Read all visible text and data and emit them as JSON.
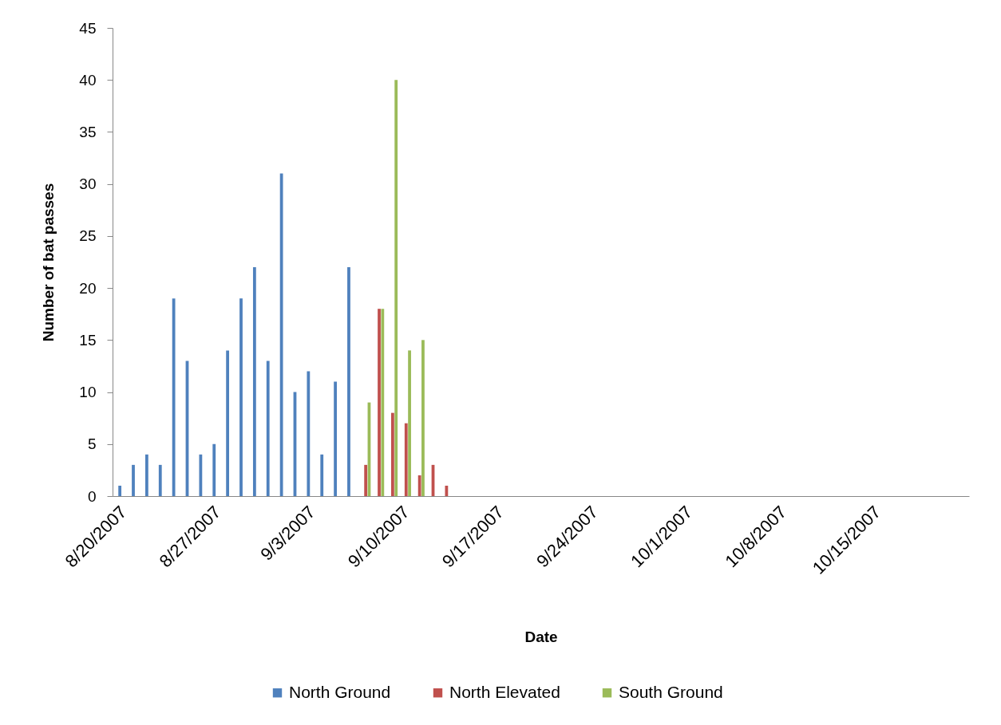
{
  "chart_data": {
    "type": "bar",
    "xlabel": "Date",
    "ylabel": "Number of bat passes",
    "xlim": [
      "2007-08-19T12:00",
      "2007-10-21T12:00"
    ],
    "xticks": [
      {
        "value": "2007-08-20",
        "label": "8/20/2007"
      },
      {
        "value": "2007-08-27",
        "label": "8/27/2007"
      },
      {
        "value": "2007-09-03",
        "label": "9/3/2007"
      },
      {
        "value": "2007-09-10",
        "label": "9/10/2007"
      },
      {
        "value": "2007-09-17",
        "label": "9/17/2007"
      },
      {
        "value": "2007-09-24",
        "label": "9/24/2007"
      },
      {
        "value": "2007-10-01",
        "label": "10/1/2007"
      },
      {
        "value": "2007-10-08",
        "label": "10/8/2007"
      },
      {
        "value": "2007-10-15",
        "label": "10/15/2007"
      }
    ],
    "ylim": [
      0,
      45
    ],
    "yticks": [
      0,
      5,
      10,
      15,
      20,
      25,
      30,
      35,
      40,
      45
    ],
    "grid": false,
    "legend": "bottom",
    "series": [
      {
        "name": "North Ground",
        "color": "#4f81bd",
        "x": [
          "2007-08-20",
          "2007-08-21",
          "2007-08-22",
          "2007-08-23",
          "2007-08-24",
          "2007-08-25",
          "2007-08-26",
          "2007-08-27",
          "2007-08-28",
          "2007-08-29",
          "2007-08-30",
          "2007-08-31",
          "2007-09-01",
          "2007-09-02",
          "2007-09-03",
          "2007-09-04",
          "2007-09-05",
          "2007-09-06"
        ],
        "values": [
          1,
          3,
          4,
          3,
          19,
          13,
          4,
          5,
          14,
          19,
          22,
          13,
          31,
          10,
          12,
          4,
          11,
          22
        ]
      },
      {
        "name": "North Elevated",
        "color": "#c0504d",
        "x": [
          "2007-09-07",
          "2007-09-08",
          "2007-09-09",
          "2007-09-10",
          "2007-09-11",
          "2007-09-12",
          "2007-09-13"
        ],
        "values": [
          3,
          18,
          8,
          7,
          2,
          3,
          1
        ]
      },
      {
        "name": "South Ground",
        "color": "#9bbb59",
        "x": [
          "2007-09-07",
          "2007-09-08",
          "2007-09-09",
          "2007-09-10",
          "2007-09-11"
        ],
        "values": [
          9,
          18,
          40,
          14,
          15
        ]
      }
    ]
  }
}
